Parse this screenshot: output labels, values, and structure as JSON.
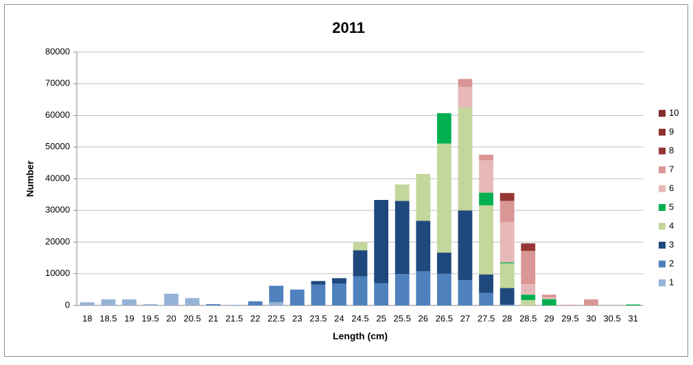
{
  "chart_data": {
    "type": "stacked_bar",
    "title": "2011",
    "xlabel": "Length (cm)",
    "ylabel": "Number",
    "categories": [
      "18",
      "18.5",
      "19",
      "19.5",
      "20",
      "20.5",
      "21",
      "21.5",
      "22",
      "22.5",
      "23",
      "23.5",
      "24",
      "24.5",
      "25",
      "25.5",
      "26",
      "26.5",
      "27",
      "27.5",
      "28",
      "28.5",
      "29",
      "29.5",
      "30",
      "30.5",
      "31"
    ],
    "series": [
      {
        "name": "1",
        "color": "#95b3d7",
        "values": [
          1000,
          1900,
          1900,
          400,
          3700,
          2300,
          0,
          200,
          0,
          1000,
          0,
          0,
          0,
          0,
          0,
          0,
          0,
          0,
          0,
          0,
          0,
          0,
          0,
          0,
          0,
          0,
          0
        ]
      },
      {
        "name": "2",
        "color": "#4f81bd",
        "values": [
          0,
          0,
          0,
          0,
          0,
          0,
          400,
          0,
          1300,
          5200,
          5000,
          6600,
          6900,
          9200,
          7000,
          9900,
          10800,
          10000,
          8000,
          4000,
          300,
          0,
          0,
          0,
          0,
          0,
          0
        ]
      },
      {
        "name": "3",
        "color": "#1f497d",
        "values": [
          0,
          0,
          0,
          0,
          0,
          0,
          0,
          0,
          0,
          0,
          0,
          1100,
          1700,
          8200,
          26300,
          23100,
          15900,
          6700,
          22000,
          5800,
          5200,
          0,
          0,
          0,
          0,
          0,
          0
        ]
      },
      {
        "name": "4",
        "color": "#c3d69b",
        "values": [
          0,
          0,
          0,
          0,
          0,
          0,
          0,
          0,
          0,
          0,
          0,
          0,
          0,
          2600,
          0,
          5200,
          14800,
          34400,
          32500,
          21800,
          7800,
          1700,
          0,
          0,
          0,
          0,
          0
        ]
      },
      {
        "name": "5",
        "color": "#00b050",
        "values": [
          0,
          0,
          0,
          0,
          0,
          0,
          0,
          0,
          0,
          0,
          0,
          0,
          0,
          0,
          0,
          0,
          0,
          9600,
          0,
          4000,
          300,
          1700,
          2000,
          0,
          0,
          0,
          300
        ]
      },
      {
        "name": "6",
        "color": "#e6b9b8",
        "values": [
          0,
          0,
          0,
          0,
          0,
          0,
          0,
          0,
          0,
          0,
          0,
          0,
          0,
          0,
          0,
          0,
          0,
          0,
          6500,
          10200,
          12700,
          3300,
          600,
          0,
          0,
          0,
          0
        ]
      },
      {
        "name": "7",
        "color": "#d99694",
        "values": [
          0,
          0,
          0,
          0,
          0,
          0,
          0,
          0,
          0,
          0,
          0,
          0,
          0,
          0,
          0,
          0,
          0,
          0,
          2500,
          1800,
          6700,
          10500,
          800,
          200,
          1900,
          0,
          0
        ]
      },
      {
        "name": "8",
        "color": "#953735",
        "values": [
          0,
          0,
          0,
          0,
          0,
          0,
          0,
          0,
          0,
          0,
          0,
          0,
          0,
          0,
          0,
          0,
          0,
          0,
          0,
          0,
          2500,
          2400,
          0,
          0,
          0,
          0,
          0
        ]
      },
      {
        "name": "9",
        "color": "#8e3130",
        "values": [
          0,
          0,
          0,
          0,
          0,
          0,
          0,
          0,
          0,
          0,
          0,
          0,
          0,
          0,
          0,
          0,
          0,
          0,
          0,
          0,
          0,
          0,
          0,
          0,
          0,
          0,
          0
        ]
      },
      {
        "name": "10",
        "color": "#852b2b",
        "values": [
          0,
          0,
          0,
          0,
          0,
          0,
          0,
          0,
          0,
          0,
          0,
          0,
          0,
          0,
          0,
          0,
          0,
          0,
          0,
          0,
          0,
          0,
          0,
          0,
          0,
          0,
          0
        ]
      }
    ],
    "ylim": [
      0,
      80000
    ],
    "yticks": [
      0,
      10000,
      20000,
      30000,
      40000,
      50000,
      60000,
      70000,
      80000
    ],
    "grid": true,
    "legend": "right"
  }
}
